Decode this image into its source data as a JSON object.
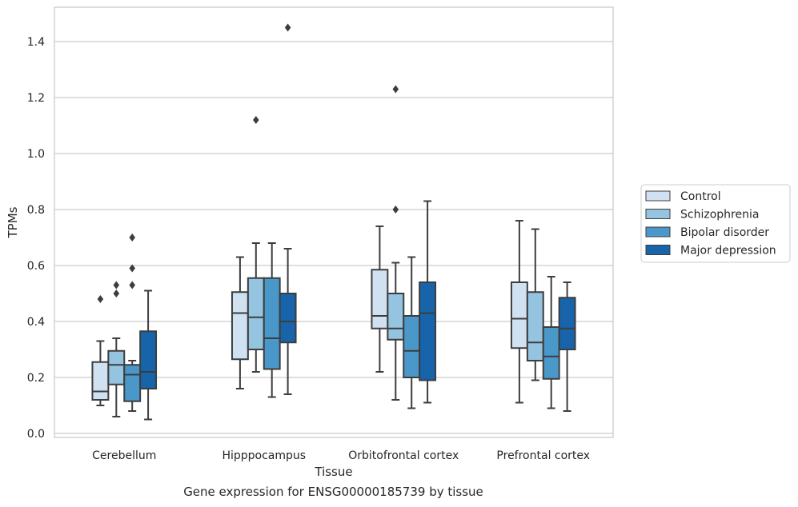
{
  "chart_data": {
    "type": "box",
    "categories": [
      "Cerebellum",
      "Hipppocampus",
      "Orbitofrontal cortex",
      "Prefrontal cortex"
    ],
    "xlabel": "Tissue",
    "ylabel": "TPMs",
    "ylim": [
      -0.02,
      1.52
    ],
    "yticks": [
      "0.0",
      "0.2",
      "0.4",
      "0.6",
      "0.8",
      "1.0",
      "1.2",
      "1.4"
    ],
    "grid": "horizontal",
    "legend_position": "right",
    "series": [
      {
        "name": "Control",
        "color": "#d0e1f2",
        "boxes": [
          {
            "whislo": 0.1,
            "q1": 0.12,
            "med": 0.15,
            "q3": 0.255,
            "whishi": 0.33,
            "fliers": [
              0.48
            ]
          },
          {
            "whislo": 0.16,
            "q1": 0.265,
            "med": 0.43,
            "q3": 0.505,
            "whishi": 0.63,
            "fliers": []
          },
          {
            "whislo": 0.22,
            "q1": 0.375,
            "med": 0.42,
            "q3": 0.585,
            "whishi": 0.74,
            "fliers": []
          },
          {
            "whislo": 0.11,
            "q1": 0.305,
            "med": 0.41,
            "q3": 0.54,
            "whishi": 0.76,
            "fliers": []
          }
        ]
      },
      {
        "name": "Schizophrenia",
        "color": "#94c4df",
        "boxes": [
          {
            "whislo": 0.06,
            "q1": 0.175,
            "med": 0.245,
            "q3": 0.295,
            "whishi": 0.34,
            "fliers": [
              0.5,
              0.53
            ]
          },
          {
            "whislo": 0.22,
            "q1": 0.3,
            "med": 0.415,
            "q3": 0.555,
            "whishi": 0.68,
            "fliers": [
              1.12
            ]
          },
          {
            "whislo": 0.12,
            "q1": 0.335,
            "med": 0.375,
            "q3": 0.5,
            "whishi": 0.61,
            "fliers": [
              0.8,
              1.23
            ]
          },
          {
            "whislo": 0.19,
            "q1": 0.26,
            "med": 0.325,
            "q3": 0.505,
            "whishi": 0.73,
            "fliers": []
          }
        ]
      },
      {
        "name": "Bipolar disorder",
        "color": "#4a98c9",
        "boxes": [
          {
            "whislo": 0.08,
            "q1": 0.115,
            "med": 0.21,
            "q3": 0.245,
            "whishi": 0.26,
            "fliers": [
              0.53,
              0.59,
              0.7
            ]
          },
          {
            "whislo": 0.13,
            "q1": 0.23,
            "med": 0.34,
            "q3": 0.555,
            "whishi": 0.68,
            "fliers": []
          },
          {
            "whislo": 0.09,
            "q1": 0.2,
            "med": 0.295,
            "q3": 0.42,
            "whishi": 0.63,
            "fliers": []
          },
          {
            "whislo": 0.09,
            "q1": 0.195,
            "med": 0.275,
            "q3": 0.38,
            "whishi": 0.56,
            "fliers": []
          }
        ]
      },
      {
        "name": "Major depression",
        "color": "#1764ab",
        "boxes": [
          {
            "whislo": 0.05,
            "q1": 0.16,
            "med": 0.22,
            "q3": 0.365,
            "whishi": 0.51,
            "fliers": []
          },
          {
            "whislo": 0.14,
            "q1": 0.325,
            "med": 0.4,
            "q3": 0.5,
            "whishi": 0.66,
            "fliers": [
              1.45
            ]
          },
          {
            "whislo": 0.11,
            "q1": 0.19,
            "med": 0.43,
            "q3": 0.54,
            "whishi": 0.83,
            "fliers": []
          },
          {
            "whislo": 0.08,
            "q1": 0.3,
            "med": 0.375,
            "q3": 0.485,
            "whishi": 0.54,
            "fliers": []
          }
        ]
      }
    ],
    "caption": "Gene expression for ENSG00000185739 by tissue"
  }
}
